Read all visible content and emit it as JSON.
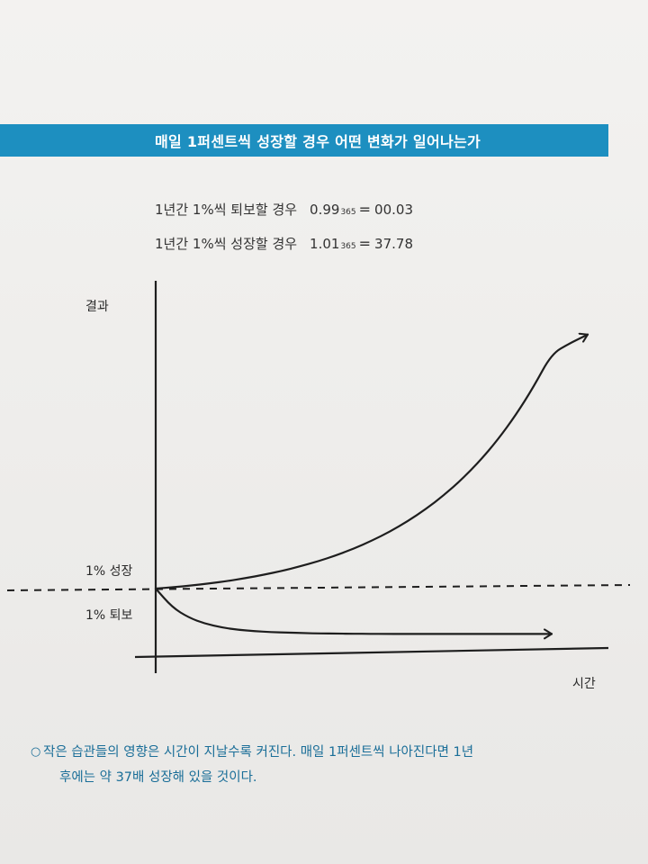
{
  "title": "매일 1퍼센트씩 성장할 경우 어떤 변화가 일어나는가",
  "formulas": [
    {
      "label": "1년간 1%씩 퇴보할 경우",
      "base": "0.99",
      "exponent": "365",
      "equals": "=",
      "result": "00.03"
    },
    {
      "label": "1년간 1%씩 성장할 경우",
      "base": "1.01",
      "exponent": "365",
      "equals": "=",
      "result": "37.78"
    }
  ],
  "caption": {
    "bullet": "○",
    "line1": "작은 습관들의 영향은 시간이 지날수록 커진다. 매일 1퍼센트씩 나아진다면 1년",
    "line2": "후에는 약 37배 성장해 있을 것이다."
  },
  "colors": {
    "title_bg": "#1d8fc0",
    "caption": "#1a6e98",
    "ink": "#1e1e1e"
  },
  "chart_data": {
    "type": "line",
    "xlabel": "시간",
    "ylabel": "결과",
    "y_markers": [
      "1% 성장",
      "1% 퇴보"
    ],
    "x": [
      0,
      0.5,
      1,
      1.5,
      2,
      2.5,
      3,
      3.5,
      4,
      4.5,
      5,
      5.5,
      6,
      6.5,
      7,
      7.5,
      8,
      8.5,
      9,
      9.5,
      10,
      10.5,
      11,
      11.5,
      12
    ],
    "series": [
      {
        "name": "1% 성장",
        "values": [
          1.0,
          1.2,
          1.45,
          1.75,
          2.1,
          2.52,
          3.0,
          3.56,
          4.2,
          4.94,
          5.8,
          6.79,
          7.93,
          9.24,
          10.76,
          12.5,
          14.5,
          16.8,
          19.46,
          22.54,
          26.1,
          30.23,
          35.0,
          36.5,
          37.78
        ],
        "arrow": true
      },
      {
        "name": "1% 퇴보",
        "values": [
          1.0,
          0.6,
          0.38,
          0.25,
          0.17,
          0.12,
          0.09,
          0.07,
          0.06,
          0.05,
          0.04,
          0.04,
          0.035,
          0.033,
          0.032,
          0.031,
          0.031,
          0.03,
          0.03,
          0.03,
          0.03,
          0.03,
          0.03,
          0.03,
          0.03
        ],
        "arrow": true
      }
    ],
    "baseline": 1.0,
    "baseline_style": "dashed",
    "grid": false,
    "ylim": [
      0,
      38
    ]
  }
}
